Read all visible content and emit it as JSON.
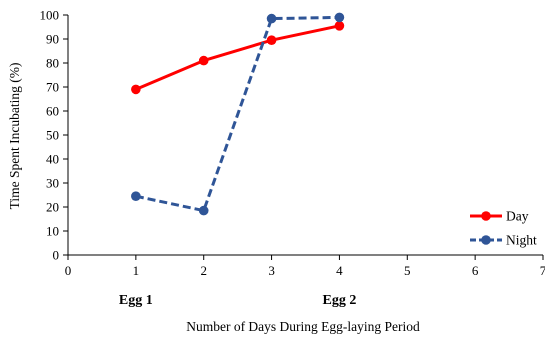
{
  "chart_data": {
    "type": "line",
    "title": "",
    "xlabel": "Number of Days During Egg-laying Period",
    "ylabel": "Time Spent Incubating (%)",
    "xlim": [
      0,
      7
    ],
    "ylim": [
      0,
      100
    ],
    "x_ticks": [
      0,
      1,
      2,
      3,
      4,
      5,
      6,
      7
    ],
    "y_ticks": [
      0,
      10,
      20,
      30,
      40,
      50,
      60,
      70,
      80,
      90,
      100
    ],
    "grid": false,
    "legend_position": "bottom-right",
    "annotations": [
      {
        "text": "Egg 1",
        "x": 1
      },
      {
        "text": "Egg 2",
        "x": 4
      }
    ],
    "series": [
      {
        "name": "Day",
        "color": "#ff0000",
        "line_style": "solid",
        "marker": "circle",
        "x": [
          1,
          2,
          3,
          4
        ],
        "values": [
          69,
          81,
          89.5,
          95.5
        ]
      },
      {
        "name": "Night",
        "color": "#2f5597",
        "line_style": "dashed",
        "marker": "circle",
        "x": [
          1,
          2,
          3,
          4
        ],
        "values": [
          24.5,
          18.5,
          98.5,
          99
        ]
      }
    ]
  }
}
